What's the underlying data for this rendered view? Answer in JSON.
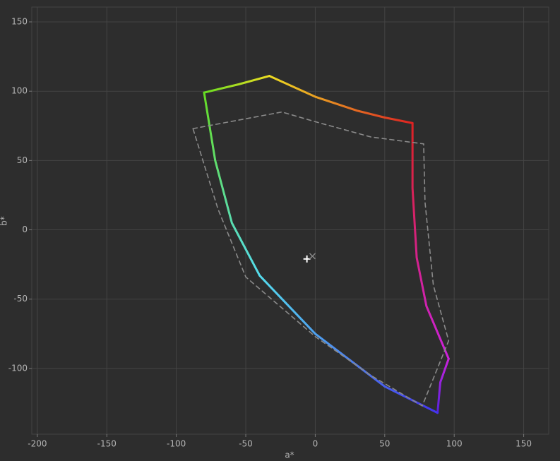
{
  "chart_data": {
    "type": "line",
    "x_label": "a*",
    "y_label": "b*",
    "xlim": [
      -204,
      168
    ],
    "ylim": [
      -147.4,
      160.7
    ],
    "xticks": [
      -200,
      -150,
      -100,
      -50,
      0,
      50,
      100,
      150
    ],
    "yticks": [
      -100,
      -50,
      0,
      50,
      100,
      150
    ],
    "grid": true,
    "series": [
      {
        "name": "edge-green-yellow",
        "colors": [
          "#66dd22",
          "#eedd22"
        ],
        "style": "solid",
        "x": [
          -80,
          -55,
          -33
        ],
        "values": [
          99,
          105,
          111
        ]
      },
      {
        "name": "edge-yellow-red",
        "colors": [
          "#eedd22",
          "#dd2222"
        ],
        "style": "solid",
        "x": [
          -33,
          0,
          30,
          50,
          70
        ],
        "values": [
          111,
          96,
          86,
          81,
          77
        ]
      },
      {
        "name": "edge-red-magenta",
        "colors": [
          "#dd2222",
          "#cc22dd"
        ],
        "style": "solid",
        "x": [
          70,
          70,
          73,
          80,
          96
        ],
        "values": [
          77,
          30,
          -20,
          -55,
          -93
        ]
      },
      {
        "name": "edge-magenta-blue",
        "colors": [
          "#cc22dd",
          "#5522dd"
        ],
        "style": "solid",
        "x": [
          96,
          90,
          88
        ],
        "values": [
          -93,
          -110,
          -132
        ]
      },
      {
        "name": "edge-blue-cyan",
        "colors": [
          "#4433ee",
          "#55ddee"
        ],
        "style": "solid",
        "x": [
          88,
          50,
          0,
          -40
        ],
        "values": [
          -132,
          -113,
          -75,
          -33
        ]
      },
      {
        "name": "edge-cyan-green",
        "colors": [
          "#55ddee",
          "#66dd22"
        ],
        "style": "solid",
        "x": [
          -40,
          -60,
          -72,
          -80
        ],
        "values": [
          -33,
          5,
          50,
          99
        ]
      },
      {
        "name": "reference-gamut",
        "colors": [
          "#8a8a8a",
          "#8a8a8a"
        ],
        "style": "dashed",
        "x": [
          -88,
          -24,
          0,
          40,
          78,
          79,
          85,
          96,
          77,
          40,
          0,
          -50,
          -70,
          -88
        ],
        "values": [
          73,
          85,
          78,
          67,
          62,
          20,
          -40,
          -80,
          -127,
          -105,
          -77,
          -34,
          15,
          73
        ]
      }
    ],
    "markers": [
      {
        "shape": "plus",
        "color": "#ffffff",
        "x": -6,
        "y": -21
      },
      {
        "shape": "cross",
        "color": "#8a8a8a",
        "x": -2,
        "y": -19
      }
    ]
  }
}
